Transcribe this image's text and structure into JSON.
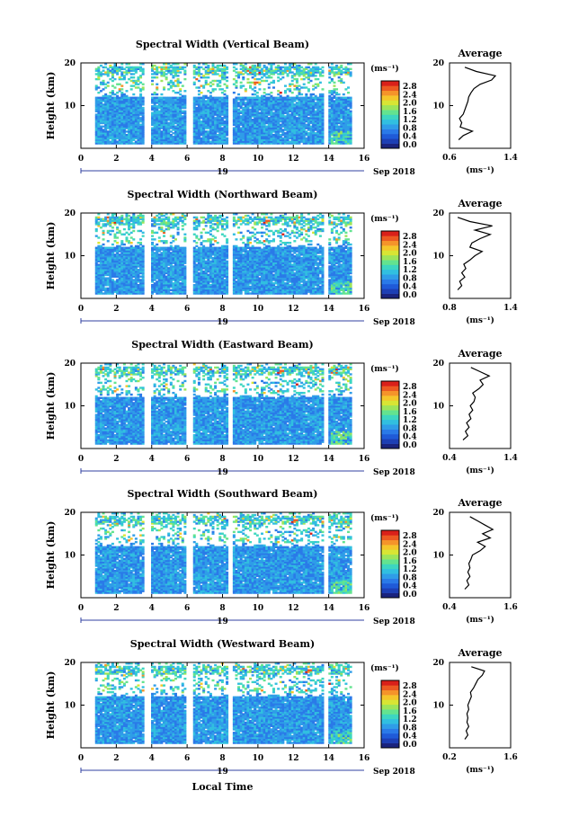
{
  "figure": {
    "xlabel": "Local Time"
  },
  "colorbar": {
    "unit_label": "(ms⁻¹)",
    "ticks": [
      "2.8",
      "2.4",
      "2.0",
      "1.6",
      "1.2",
      "0.8",
      "0.4",
      "0.0"
    ],
    "colors": [
      "#1a237e",
      "#1d3fb5",
      "#1f5ad8",
      "#2a7ae8",
      "#2f9de8",
      "#31bfe0",
      "#3dd6c0",
      "#63e38f",
      "#9de45a",
      "#d8e534",
      "#f5c62a",
      "#f5942a",
      "#ec5a22",
      "#d9201a"
    ]
  },
  "chart_data": [
    {
      "type": "heatmap",
      "title": "Spectral Width (Vertical Beam)",
      "ylabel": "Height (km)",
      "xlim": [
        0,
        16
      ],
      "x_ticks": [
        "0",
        "2",
        "4",
        "6",
        "8",
        "10",
        "12",
        "14",
        "16"
      ],
      "ylim": [
        0,
        20
      ],
      "y_ticks": [
        "10",
        "20"
      ],
      "date_labels": [
        "19",
        "Sep 2018"
      ],
      "colorbar_range": [
        0.0,
        2.8
      ],
      "data_gaps_hours": [
        [
          3.6,
          3.9
        ],
        [
          5.9,
          6.4
        ],
        [
          8.3,
          8.6
        ],
        [
          13.7,
          14.0
        ]
      ],
      "average_profile": {
        "title": "Average",
        "xlabel": "(ms⁻¹)",
        "xlim": [
          0.6,
          1.4
        ],
        "x_ticks": [
          "0.6",
          "1.4"
        ],
        "y_ticks": [
          "10",
          "20"
        ],
        "heights": [
          2,
          3,
          4,
          5,
          6,
          7,
          8,
          9,
          10,
          11,
          12,
          13,
          14,
          15,
          16,
          17,
          18,
          19
        ],
        "values": [
          0.72,
          0.78,
          0.9,
          0.74,
          0.76,
          0.73,
          0.78,
          0.8,
          0.82,
          0.84,
          0.85,
          0.88,
          0.92,
          1.0,
          1.15,
          1.2,
          0.95,
          0.8
        ]
      }
    },
    {
      "type": "heatmap",
      "title": "Spectral Width (Northward Beam)",
      "ylabel": "Height (km)",
      "xlim": [
        0,
        16
      ],
      "x_ticks": [
        "0",
        "2",
        "4",
        "6",
        "8",
        "10",
        "12",
        "14",
        "16"
      ],
      "ylim": [
        0,
        20
      ],
      "y_ticks": [
        "10",
        "20"
      ],
      "date_labels": [
        "19",
        "Sep 2018"
      ],
      "colorbar_range": [
        0.0,
        2.8
      ],
      "data_gaps_hours": [
        [
          3.6,
          3.9
        ],
        [
          5.9,
          6.4
        ],
        [
          8.3,
          8.6
        ],
        [
          13.7,
          14.0
        ]
      ],
      "average_profile": {
        "title": "Average",
        "xlabel": "(ms⁻¹)",
        "xlim": [
          0.8,
          1.4
        ],
        "x_ticks": [
          "0.8",
          "1.4"
        ],
        "y_ticks": [
          "10",
          "20"
        ],
        "heights": [
          2,
          3,
          4,
          5,
          6,
          7,
          8,
          9,
          10,
          11,
          12,
          13,
          14,
          15,
          16,
          17,
          18,
          19
        ],
        "values": [
          0.88,
          0.92,
          0.9,
          0.95,
          0.92,
          0.96,
          0.94,
          1.0,
          1.05,
          1.12,
          1.0,
          1.02,
          1.1,
          1.2,
          1.05,
          1.22,
          1.0,
          0.88
        ]
      }
    },
    {
      "type": "heatmap",
      "title": "Spectral Width (Eastward Beam)",
      "ylabel": "Height (km)",
      "xlim": [
        0,
        16
      ],
      "x_ticks": [
        "0",
        "2",
        "4",
        "6",
        "8",
        "10",
        "12",
        "14",
        "16"
      ],
      "ylim": [
        0,
        20
      ],
      "y_ticks": [
        "10",
        "20"
      ],
      "date_labels": [
        "19",
        "Sep 2018"
      ],
      "colorbar_range": [
        0.0,
        2.8
      ],
      "data_gaps_hours": [
        [
          3.6,
          3.9
        ],
        [
          5.9,
          6.4
        ],
        [
          8.3,
          8.6
        ],
        [
          13.7,
          14.0
        ]
      ],
      "average_profile": {
        "title": "Average",
        "xlabel": "(ms⁻¹)",
        "xlim": [
          0.4,
          1.4
        ],
        "x_ticks": [
          "0.4",
          "1.4"
        ],
        "y_ticks": [
          "10",
          "20"
        ],
        "heights": [
          2,
          3,
          4,
          5,
          6,
          7,
          8,
          9,
          10,
          11,
          12,
          13,
          14,
          15,
          16,
          17,
          18,
          19
        ],
        "values": [
          0.62,
          0.7,
          0.66,
          0.72,
          0.68,
          0.75,
          0.72,
          0.78,
          0.74,
          0.8,
          0.82,
          0.78,
          0.88,
          0.95,
          0.9,
          1.05,
          0.9,
          0.75
        ]
      }
    },
    {
      "type": "heatmap",
      "title": "Spectral Width (Southward Beam)",
      "ylabel": "Height (km)",
      "xlim": [
        0,
        16
      ],
      "x_ticks": [
        "0",
        "2",
        "4",
        "6",
        "8",
        "10",
        "12",
        "14",
        "16"
      ],
      "ylim": [
        0,
        20
      ],
      "y_ticks": [
        "10",
        "20"
      ],
      "date_labels": [
        "19",
        "Sep 2018"
      ],
      "colorbar_range": [
        0.0,
        2.8
      ],
      "data_gaps_hours": [
        [
          3.6,
          3.9
        ],
        [
          5.9,
          6.4
        ],
        [
          8.3,
          8.6
        ],
        [
          13.7,
          14.0
        ]
      ],
      "average_profile": {
        "title": "Average",
        "xlabel": "(ms⁻¹)",
        "xlim": [
          0.4,
          1.6
        ],
        "x_ticks": [
          "0.4",
          "1.6"
        ],
        "y_ticks": [
          "10",
          "20"
        ],
        "heights": [
          2,
          3,
          4,
          5,
          6,
          7,
          8,
          9,
          10,
          11,
          12,
          13,
          14,
          15,
          16,
          17,
          18,
          19
        ],
        "values": [
          0.7,
          0.78,
          0.74,
          0.8,
          0.76,
          0.8,
          0.78,
          0.82,
          0.85,
          1.0,
          1.1,
          0.95,
          1.2,
          1.05,
          1.25,
          1.1,
          0.95,
          0.8
        ]
      }
    },
    {
      "type": "heatmap",
      "title": "Spectral Width (Westward Beam)",
      "ylabel": "Height (km)",
      "xlim": [
        0,
        16
      ],
      "x_ticks": [
        "0",
        "2",
        "4",
        "6",
        "8",
        "10",
        "12",
        "14",
        "16"
      ],
      "ylim": [
        0,
        20
      ],
      "y_ticks": [
        "10",
        "20"
      ],
      "date_labels": [
        "19",
        "Sep 2018"
      ],
      "colorbar_range": [
        0.0,
        2.8
      ],
      "data_gaps_hours": [
        [
          3.6,
          3.9
        ],
        [
          5.9,
          6.4
        ],
        [
          8.3,
          8.6
        ],
        [
          13.7,
          14.0
        ]
      ],
      "average_profile": {
        "title": "Average",
        "xlabel": "(ms⁻¹)",
        "xlim": [
          0.2,
          1.6
        ],
        "x_ticks": [
          "0.2",
          "1.6"
        ],
        "y_ticks": [
          "10",
          "20"
        ],
        "heights": [
          2,
          3,
          4,
          5,
          6,
          7,
          8,
          9,
          10,
          11,
          12,
          13,
          14,
          15,
          16,
          17,
          18,
          19
        ],
        "values": [
          0.55,
          0.62,
          0.58,
          0.64,
          0.6,
          0.62,
          0.6,
          0.64,
          0.62,
          0.66,
          0.7,
          0.68,
          0.75,
          0.8,
          0.85,
          0.95,
          1.0,
          0.7
        ]
      }
    }
  ]
}
